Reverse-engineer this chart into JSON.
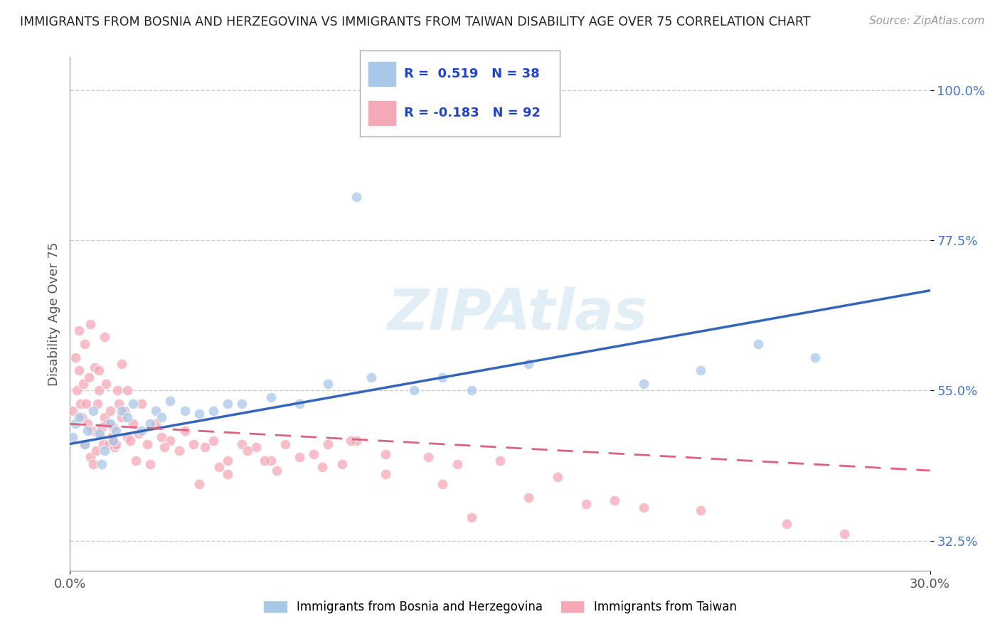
{
  "title": "IMMIGRANTS FROM BOSNIA AND HERZEGOVINA VS IMMIGRANTS FROM TAIWAN DISABILITY AGE OVER 75 CORRELATION CHART",
  "source": "Source: ZipAtlas.com",
  "ylabel": "Disability Age Over 75",
  "xlim": [
    0.0,
    30.0
  ],
  "ylim": [
    28.0,
    105.0
  ],
  "xticklabels": [
    "0.0%",
    "30.0%"
  ],
  "ytick_labels": [
    "32.5%",
    "55.0%",
    "77.5%",
    "100.0%"
  ],
  "ytick_values": [
    32.5,
    55.0,
    77.5,
    100.0
  ],
  "r_bosnia": 0.519,
  "n_bosnia": 38,
  "r_taiwan": -0.183,
  "n_taiwan": 92,
  "color_bosnia": "#a8c8e8",
  "color_taiwan": "#f5a8b8",
  "line_color_bosnia": "#3366bb",
  "line_color_taiwan": "#e06080",
  "watermark": "ZIPAtlas",
  "bosnia_x": [
    0.1,
    0.2,
    0.3,
    0.5,
    0.6,
    0.8,
    1.0,
    1.1,
    1.2,
    1.4,
    1.5,
    1.6,
    1.8,
    2.0,
    2.2,
    2.5,
    2.8,
    3.0,
    3.2,
    3.5,
    4.0,
    4.5,
    5.0,
    5.5,
    6.0,
    7.0,
    8.0,
    9.0,
    10.0,
    10.5,
    12.0,
    13.0,
    14.0,
    16.0,
    20.0,
    22.0,
    24.0,
    26.0
  ],
  "bosnia_y": [
    48.0,
    50.0,
    51.0,
    47.0,
    49.0,
    52.0,
    48.5,
    44.0,
    46.0,
    50.0,
    47.5,
    49.0,
    52.0,
    51.0,
    53.0,
    49.0,
    50.0,
    52.0,
    51.0,
    53.5,
    52.0,
    51.5,
    52.0,
    53.0,
    53.0,
    54.0,
    53.0,
    56.0,
    84.0,
    57.0,
    55.0,
    57.0,
    55.0,
    59.0,
    56.0,
    58.0,
    62.0,
    60.0
  ],
  "taiwan_x": [
    0.1,
    0.2,
    0.25,
    0.3,
    0.35,
    0.4,
    0.45,
    0.5,
    0.55,
    0.6,
    0.65,
    0.7,
    0.75,
    0.8,
    0.85,
    0.9,
    0.95,
    1.0,
    1.05,
    1.1,
    1.15,
    1.2,
    1.25,
    1.3,
    1.35,
    1.4,
    1.45,
    1.5,
    1.55,
    1.6,
    1.65,
    1.7,
    1.8,
    1.9,
    2.0,
    2.1,
    2.2,
    2.3,
    2.5,
    2.7,
    3.0,
    3.2,
    3.5,
    3.8,
    4.0,
    4.3,
    4.7,
    5.0,
    5.5,
    6.0,
    6.5,
    7.0,
    7.5,
    8.5,
    9.0,
    9.5,
    10.0,
    11.0,
    12.5,
    13.5,
    14.0,
    15.0,
    17.0,
    19.0,
    0.3,
    0.5,
    0.7,
    1.0,
    1.2,
    1.5,
    1.8,
    2.0,
    2.4,
    2.8,
    3.3,
    4.5,
    5.2,
    6.2,
    7.2,
    8.0,
    8.8,
    9.8,
    11.0,
    13.0,
    16.0,
    18.0,
    20.0,
    22.0,
    25.0,
    27.0,
    5.5,
    6.8
  ],
  "taiwan_y": [
    52.0,
    60.0,
    55.0,
    58.0,
    53.0,
    51.0,
    56.0,
    47.0,
    53.0,
    50.0,
    57.0,
    45.0,
    49.0,
    44.0,
    58.5,
    46.0,
    53.0,
    55.0,
    48.5,
    49.5,
    47.0,
    51.0,
    56.0,
    50.0,
    47.0,
    52.0,
    48.0,
    49.5,
    46.5,
    47.0,
    55.0,
    53.0,
    51.0,
    52.0,
    48.0,
    47.5,
    50.0,
    44.5,
    53.0,
    47.0,
    50.0,
    48.0,
    47.5,
    46.0,
    49.0,
    47.0,
    46.5,
    47.5,
    44.5,
    47.0,
    46.5,
    44.5,
    47.0,
    45.5,
    47.0,
    44.0,
    47.5,
    45.5,
    45.0,
    44.0,
    36.0,
    44.5,
    42.0,
    38.5,
    64.0,
    62.0,
    65.0,
    58.0,
    63.0,
    47.5,
    59.0,
    55.0,
    48.5,
    44.0,
    46.5,
    41.0,
    43.5,
    46.0,
    43.0,
    45.0,
    43.5,
    47.5,
    42.5,
    41.0,
    39.0,
    38.0,
    37.5,
    37.0,
    35.0,
    33.5,
    42.5,
    44.5
  ]
}
